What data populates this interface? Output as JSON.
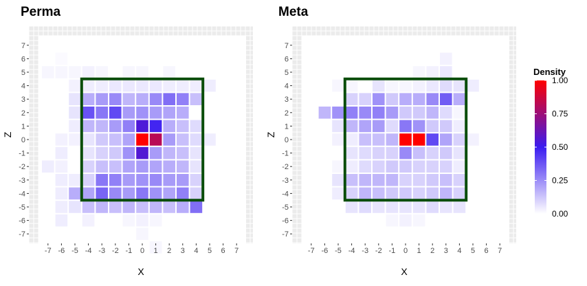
{
  "chart_data": {
    "type": "heatmap",
    "grid_range": {
      "x": [
        -7,
        7
      ],
      "z": [
        -7,
        7
      ]
    },
    "x_ticks": [
      -7,
      -6,
      -5,
      -4,
      -3,
      -2,
      -1,
      0,
      1,
      2,
      3,
      4,
      5,
      6,
      7
    ],
    "z_ticks": [
      7,
      6,
      5,
      4,
      3,
      2,
      1,
      0,
      -1,
      -2,
      -3,
      -4,
      -5,
      -6,
      -7
    ],
    "xlabel": "X",
    "ylabel": "Z",
    "zone": {
      "x": [
        -4.5,
        4.5
      ],
      "z": [
        -4.5,
        4.5
      ],
      "color": "#0a4d0a"
    },
    "legend": {
      "title": "Density",
      "ticks": [
        "1.00",
        "0.75",
        "0.50",
        "0.25",
        "0.00"
      ],
      "colors": [
        "#ffffff",
        "#3a1cf0",
        "#ff0000"
      ]
    },
    "panels": [
      {
        "title": "Perma",
        "cells": [
          [
            -7,
            5,
            0.02
          ],
          [
            -6,
            5,
            0.02
          ],
          [
            -5,
            5,
            0.02
          ],
          [
            -4,
            5,
            0.03
          ],
          [
            -3,
            5,
            0.02
          ],
          [
            -1,
            5,
            0.02
          ],
          [
            0,
            5,
            0.02
          ],
          [
            2,
            5,
            0.02
          ],
          [
            -6,
            6,
            0.01
          ],
          [
            -5,
            4,
            0.03
          ],
          [
            -4,
            4,
            0.04
          ],
          [
            -3,
            4,
            0.04
          ],
          [
            -2,
            4,
            0.05
          ],
          [
            -1,
            4,
            0.05
          ],
          [
            0,
            4,
            0.05
          ],
          [
            1,
            4,
            0.05
          ],
          [
            2,
            4,
            0.04
          ],
          [
            3,
            4,
            0.04
          ],
          [
            4,
            4,
            0.04
          ],
          [
            5,
            4,
            0.04
          ],
          [
            -5,
            3,
            0.06
          ],
          [
            -4,
            3,
            0.18
          ],
          [
            -3,
            3,
            0.22
          ],
          [
            -2,
            3,
            0.26
          ],
          [
            -1,
            3,
            0.16
          ],
          [
            0,
            3,
            0.18
          ],
          [
            1,
            3,
            0.26
          ],
          [
            2,
            3,
            0.32
          ],
          [
            3,
            3,
            0.28
          ],
          [
            4,
            3,
            0.14
          ],
          [
            -5,
            2,
            0.06
          ],
          [
            -4,
            2,
            0.38
          ],
          [
            -3,
            2,
            0.3
          ],
          [
            -2,
            2,
            0.4
          ],
          [
            -1,
            2,
            0.22
          ],
          [
            0,
            2,
            0.24
          ],
          [
            1,
            2,
            0.22
          ],
          [
            2,
            2,
            0.2
          ],
          [
            3,
            2,
            0.18
          ],
          [
            -5,
            1,
            0.04
          ],
          [
            -4,
            1,
            0.16
          ],
          [
            -3,
            1,
            0.16
          ],
          [
            -2,
            1,
            0.22
          ],
          [
            -1,
            1,
            0.28
          ],
          [
            0,
            1,
            0.55
          ],
          [
            1,
            1,
            0.48
          ],
          [
            2,
            1,
            0.18
          ],
          [
            3,
            1,
            0.14
          ],
          [
            4,
            1,
            0.08
          ],
          [
            -6,
            0,
            0.03
          ],
          [
            -5,
            0,
            0.03
          ],
          [
            -4,
            0,
            0.06
          ],
          [
            -3,
            0,
            0.12
          ],
          [
            -2,
            0,
            0.14
          ],
          [
            -1,
            0,
            0.2
          ],
          [
            0,
            0,
            1.0
          ],
          [
            1,
            0,
            0.82
          ],
          [
            2,
            0,
            0.22
          ],
          [
            3,
            0,
            0.14
          ],
          [
            4,
            0,
            0.08
          ],
          [
            5,
            0,
            0.04
          ],
          [
            -6,
            -1,
            0.04
          ],
          [
            -4,
            -1,
            0.06
          ],
          [
            -3,
            -1,
            0.1
          ],
          [
            -2,
            -1,
            0.12
          ],
          [
            -1,
            -1,
            0.24
          ],
          [
            0,
            -1,
            0.56
          ],
          [
            1,
            -1,
            0.22
          ],
          [
            2,
            -1,
            0.16
          ],
          [
            3,
            -1,
            0.14
          ],
          [
            4,
            -1,
            0.06
          ],
          [
            -7,
            -2,
            0.04
          ],
          [
            -6,
            -2,
            0.03
          ],
          [
            -4,
            -2,
            0.1
          ],
          [
            -3,
            -2,
            0.14
          ],
          [
            -2,
            -2,
            0.14
          ],
          [
            -1,
            -2,
            0.2
          ],
          [
            0,
            -2,
            0.22
          ],
          [
            1,
            -2,
            0.2
          ],
          [
            2,
            -2,
            0.18
          ],
          [
            3,
            -2,
            0.16
          ],
          [
            4,
            -2,
            0.06
          ],
          [
            -6,
            -3,
            0.04
          ],
          [
            -5,
            -3,
            0.04
          ],
          [
            -4,
            -3,
            0.1
          ],
          [
            -3,
            -3,
            0.3
          ],
          [
            -2,
            -3,
            0.28
          ],
          [
            -1,
            -3,
            0.22
          ],
          [
            0,
            -3,
            0.24
          ],
          [
            1,
            -3,
            0.26
          ],
          [
            2,
            -3,
            0.22
          ],
          [
            3,
            -3,
            0.22
          ],
          [
            4,
            -3,
            0.1
          ],
          [
            -6,
            -4,
            0.04
          ],
          [
            -5,
            -4,
            0.18
          ],
          [
            -4,
            -4,
            0.2
          ],
          [
            -3,
            -4,
            0.34
          ],
          [
            -2,
            -4,
            0.26
          ],
          [
            -1,
            -4,
            0.22
          ],
          [
            0,
            -4,
            0.3
          ],
          [
            1,
            -4,
            0.24
          ],
          [
            2,
            -4,
            0.2
          ],
          [
            3,
            -4,
            0.28
          ],
          [
            4,
            -4,
            0.1
          ],
          [
            -6,
            -5,
            0.04
          ],
          [
            -5,
            -5,
            0.06
          ],
          [
            -4,
            -5,
            0.14
          ],
          [
            -3,
            -5,
            0.16
          ],
          [
            -2,
            -5,
            0.14
          ],
          [
            -1,
            -5,
            0.16
          ],
          [
            0,
            -5,
            0.14
          ],
          [
            1,
            -5,
            0.16
          ],
          [
            2,
            -5,
            0.14
          ],
          [
            3,
            -5,
            0.18
          ],
          [
            4,
            -5,
            0.32
          ],
          [
            -6,
            -6,
            0.04
          ],
          [
            -4,
            -6,
            0.03
          ],
          [
            -1,
            -6,
            0.02
          ],
          [
            0,
            -6,
            0.03
          ],
          [
            1,
            -6,
            0.02
          ],
          [
            0,
            -7,
            0.02
          ],
          [
            1,
            -8,
            0.02
          ]
        ]
      },
      {
        "title": "Meta",
        "cells": [
          [
            1,
            5,
            0.02
          ],
          [
            2,
            5,
            0.03
          ],
          [
            3,
            5,
            0.05
          ],
          [
            3,
            6,
            0.03
          ],
          [
            -5,
            4,
            0.02
          ],
          [
            -4,
            4,
            0.02
          ],
          [
            -2,
            4,
            0.06
          ],
          [
            -1,
            4,
            0.02
          ],
          [
            0,
            4,
            0.02
          ],
          [
            1,
            4,
            0.03
          ],
          [
            2,
            4,
            0.05
          ],
          [
            3,
            4,
            0.08
          ],
          [
            4,
            4,
            0.06
          ],
          [
            5,
            4,
            0.04
          ],
          [
            -4,
            3,
            0.1
          ],
          [
            -3,
            3,
            0.1
          ],
          [
            -2,
            3,
            0.24
          ],
          [
            -1,
            3,
            0.12
          ],
          [
            0,
            3,
            0.18
          ],
          [
            1,
            3,
            0.18
          ],
          [
            2,
            3,
            0.26
          ],
          [
            3,
            3,
            0.36
          ],
          [
            4,
            3,
            0.18
          ],
          [
            -6,
            2,
            0.16
          ],
          [
            -5,
            2,
            0.24
          ],
          [
            -4,
            2,
            0.28
          ],
          [
            -3,
            2,
            0.26
          ],
          [
            -2,
            2,
            0.28
          ],
          [
            -1,
            2,
            0.22
          ],
          [
            0,
            2,
            0.12
          ],
          [
            1,
            2,
            0.12
          ],
          [
            2,
            2,
            0.16
          ],
          [
            3,
            2,
            0.08
          ],
          [
            4,
            2,
            0.02
          ],
          [
            -5,
            1,
            0.06
          ],
          [
            -4,
            1,
            0.16
          ],
          [
            -3,
            1,
            0.2
          ],
          [
            -2,
            1,
            0.22
          ],
          [
            -1,
            1,
            0.08
          ],
          [
            0,
            1,
            0.3
          ],
          [
            1,
            1,
            0.24
          ],
          [
            2,
            1,
            0.12
          ],
          [
            3,
            1,
            0.12
          ],
          [
            4,
            1,
            0.04
          ],
          [
            -5,
            0,
            0.03
          ],
          [
            -4,
            0,
            0.04
          ],
          [
            -3,
            0,
            0.14
          ],
          [
            -2,
            0,
            0.14
          ],
          [
            -1,
            0,
            0.16
          ],
          [
            0,
            0,
            1.0
          ],
          [
            1,
            0,
            1.0
          ],
          [
            2,
            0,
            0.4
          ],
          [
            3,
            0,
            0.2
          ],
          [
            4,
            0,
            0.1
          ],
          [
            5,
            0,
            0.03
          ],
          [
            -4,
            -1,
            0.06
          ],
          [
            -3,
            -1,
            0.08
          ],
          [
            -2,
            -1,
            0.1
          ],
          [
            -1,
            -1,
            0.1
          ],
          [
            0,
            -1,
            0.26
          ],
          [
            1,
            -1,
            0.14
          ],
          [
            2,
            -1,
            0.1
          ],
          [
            3,
            -1,
            0.12
          ],
          [
            4,
            -1,
            0.06
          ],
          [
            -5,
            -2,
            0.02
          ],
          [
            -4,
            -2,
            0.04
          ],
          [
            -3,
            -2,
            0.08
          ],
          [
            -2,
            -2,
            0.1
          ],
          [
            -1,
            -2,
            0.12
          ],
          [
            0,
            -2,
            0.12
          ],
          [
            1,
            -2,
            0.1
          ],
          [
            2,
            -2,
            0.1
          ],
          [
            3,
            -2,
            0.1
          ],
          [
            4,
            -2,
            0.04
          ],
          [
            -5,
            -3,
            0.06
          ],
          [
            -4,
            -3,
            0.14
          ],
          [
            -3,
            -3,
            0.16
          ],
          [
            -2,
            -3,
            0.16
          ],
          [
            -1,
            -3,
            0.16
          ],
          [
            0,
            -3,
            0.1
          ],
          [
            1,
            -3,
            0.1
          ],
          [
            2,
            -3,
            0.12
          ],
          [
            3,
            -3,
            0.14
          ],
          [
            4,
            -3,
            0.1
          ],
          [
            -5,
            -4,
            0.04
          ],
          [
            -4,
            -4,
            0.1
          ],
          [
            -3,
            -4,
            0.16
          ],
          [
            -2,
            -4,
            0.14
          ],
          [
            -1,
            -4,
            0.12
          ],
          [
            0,
            -4,
            0.12
          ],
          [
            1,
            -4,
            0.1
          ],
          [
            2,
            -4,
            0.12
          ],
          [
            3,
            -4,
            0.16
          ],
          [
            4,
            -4,
            0.1
          ],
          [
            -4,
            -5,
            0.06
          ],
          [
            -3,
            -5,
            0.08
          ],
          [
            -2,
            -5,
            0.06
          ],
          [
            -1,
            -5,
            0.06
          ],
          [
            0,
            -5,
            0.06
          ],
          [
            1,
            -5,
            0.06
          ],
          [
            2,
            -5,
            0.08
          ],
          [
            3,
            -5,
            0.06
          ],
          [
            4,
            -5,
            0.06
          ],
          [
            0,
            -6,
            0.03
          ],
          [
            -1,
            -6,
            0.02
          ],
          [
            1,
            -6,
            0.02
          ]
        ]
      }
    ]
  }
}
